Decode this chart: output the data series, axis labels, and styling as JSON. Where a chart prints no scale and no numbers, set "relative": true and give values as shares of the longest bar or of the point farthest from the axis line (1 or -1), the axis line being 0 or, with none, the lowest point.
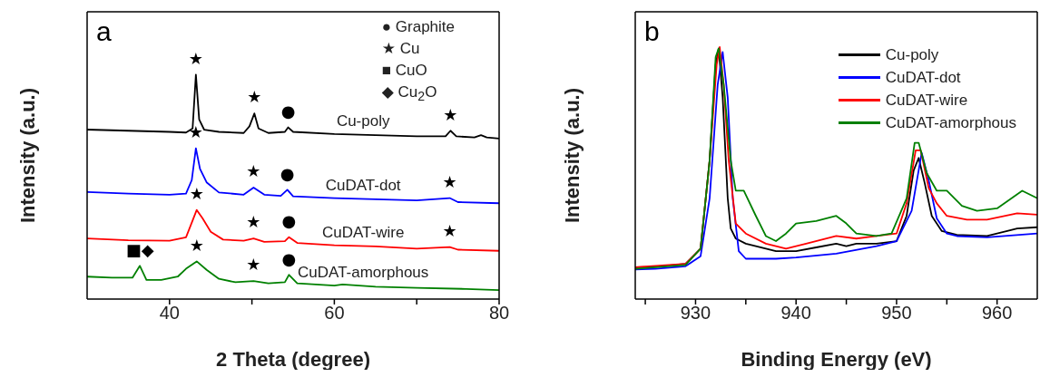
{
  "chart_data": [
    {
      "type": "line",
      "relative": true,
      "xlabel": "2 Theta (degree)",
      "ylabel": "Intensity (a.u.)",
      "xlim": [
        30,
        80
      ],
      "xticks": [
        40,
        {
          "value": 50,
          "label": null
        },
        60,
        {
          "value": 70,
          "label": null
        },
        80
      ],
      "legend": false,
      "series": [
        {
          "name": "Cu-poly",
          "color": "#000000",
          "x": [
            30,
            35,
            40,
            42,
            42.8,
            43.2,
            43.6,
            44.2,
            46,
            49,
            49.7,
            50.3,
            50.8,
            52,
            54,
            54.4,
            55,
            60,
            65,
            70,
            73.5,
            74.1,
            74.8,
            77,
            77.8,
            78.5,
            80
          ],
          "values": [
            0.755,
            0.75,
            0.745,
            0.742,
            0.76,
            1.0,
            0.8,
            0.755,
            0.745,
            0.74,
            0.77,
            0.827,
            0.76,
            0.74,
            0.745,
            0.765,
            0.745,
            0.735,
            0.73,
            0.725,
            0.725,
            0.75,
            0.725,
            0.72,
            0.73,
            0.72,
            0.715
          ]
        },
        {
          "name": "CuDAT-dot",
          "color": "#0000ff",
          "x": [
            30,
            35,
            40,
            42,
            42.7,
            43.2,
            43.7,
            44.5,
            46,
            49,
            50.2,
            51.5,
            53.5,
            54.3,
            55,
            60,
            65,
            70,
            74,
            75,
            80
          ],
          "values": [
            0.477,
            0.47,
            0.465,
            0.47,
            0.53,
            0.672,
            0.58,
            0.52,
            0.475,
            0.465,
            0.497,
            0.465,
            0.46,
            0.487,
            0.458,
            0.45,
            0.445,
            0.44,
            0.45,
            0.432,
            0.427
          ]
        },
        {
          "name": "CuDAT-wire",
          "color": "#ff0000",
          "x": [
            30,
            35,
            40,
            42,
            42.8,
            43.3,
            44,
            45,
            46.5,
            49,
            50.2,
            51.5,
            54,
            54.5,
            55.5,
            60,
            65,
            70,
            74,
            75,
            80
          ],
          "values": [
            0.27,
            0.262,
            0.26,
            0.275,
            0.35,
            0.397,
            0.36,
            0.3,
            0.265,
            0.26,
            0.27,
            0.255,
            0.258,
            0.276,
            0.25,
            0.24,
            0.235,
            0.225,
            0.232,
            0.22,
            0.215
          ]
        },
        {
          "name": "CuDAT-amorphous",
          "color": "#008000",
          "x": [
            30,
            33,
            35.5,
            36.4,
            37.2,
            39,
            41,
            42,
            43.3,
            44.5,
            46,
            48,
            50.2,
            52,
            54,
            54.5,
            55.5,
            60,
            61,
            65,
            70,
            76,
            80
          ],
          "values": [
            0.1,
            0.095,
            0.095,
            0.148,
            0.085,
            0.085,
            0.1,
            0.135,
            0.168,
            0.13,
            0.09,
            0.075,
            0.08,
            0.07,
            0.075,
            0.108,
            0.07,
            0.06,
            0.065,
            0.055,
            0.05,
            0.045,
            0.04
          ]
        }
      ],
      "annotations": [
        "a",
        "● Graphite",
        "★ Cu",
        "■ CuO",
        "◆ Cu$_{2}$O",
        {
          "text": "★",
          "x": 43.2,
          "y": 1.0
        },
        {
          "text": "★",
          "x": 50.3,
          "y": 0.827
        },
        {
          "text": "●",
          "x": 54.4,
          "y": 0.765
        },
        {
          "text": "★",
          "x": 74.1,
          "y": 0.75
        },
        {
          "text": "★",
          "x": 43.2,
          "y": 0.672
        },
        {
          "text": "★",
          "x": 50.2,
          "y": 0.497
        },
        {
          "text": "●",
          "x": 54.3,
          "y": 0.487
        },
        {
          "text": "★",
          "x": 74,
          "y": 0.45
        },
        {
          "text": "★",
          "x": 43.3,
          "y": 0.397
        },
        {
          "text": "★",
          "x": 50.2,
          "y": 0.27
        },
        {
          "text": "●",
          "x": 54.5,
          "y": 0.276
        },
        {
          "text": "★",
          "x": 74,
          "y": 0.232
        },
        {
          "text": "■◆",
          "x": 36.4,
          "y": 0.148
        },
        {
          "text": "★",
          "x": 43.3,
          "y": 0.168
        },
        {
          "text": "★",
          "x": 50.2,
          "y": 0.08
        },
        {
          "text": "●",
          "x": 54.5,
          "y": 0.108
        }
      ]
    },
    {
      "type": "line",
      "relative": true,
      "xlabel": "Binding Energy (eV)",
      "ylabel": "Intensity (a.u.)",
      "xlim": [
        924,
        964
      ],
      "xticks": [
        {
          "value": 925,
          "label": null
        },
        930,
        {
          "value": 935,
          "label": null
        },
        940,
        {
          "value": 945,
          "label": null
        },
        950,
        {
          "value": 955,
          "label": null
        },
        960
      ],
      "legend": "top right",
      "series": [
        {
          "name": "Cu-poly",
          "color": "#000000",
          "x": [
            924,
            926,
            929,
            930.5,
            931.4,
            932,
            932.3,
            932.7,
            933.2,
            933.5,
            934,
            935,
            938,
            940,
            942,
            944,
            945,
            946,
            947,
            948,
            950,
            951,
            951.7,
            952.2,
            952.8,
            953.5,
            954.5,
            956,
            959,
            962,
            964
          ],
          "values": [
            0.126,
            0.128,
            0.14,
            0.2,
            0.55,
            0.93,
            0.994,
            0.8,
            0.4,
            0.28,
            0.24,
            0.22,
            0.19,
            0.19,
            0.205,
            0.22,
            0.21,
            0.22,
            0.22,
            0.22,
            0.23,
            0.33,
            0.51,
            0.56,
            0.46,
            0.33,
            0.27,
            0.255,
            0.25,
            0.28,
            0.285
          ]
        },
        {
          "name": "CuDAT-dot",
          "color": "#0000ff",
          "x": [
            924,
            926,
            929,
            930.5,
            931.4,
            932.2,
            932.7,
            933.2,
            933.7,
            934.3,
            935,
            938,
            940,
            944,
            948,
            950,
            951.5,
            952.5,
            953.2,
            954,
            955,
            956,
            959,
            964
          ],
          "values": [
            0.117,
            0.12,
            0.13,
            0.17,
            0.4,
            0.85,
            0.98,
            0.8,
            0.4,
            0.19,
            0.16,
            0.16,
            0.165,
            0.18,
            0.21,
            0.23,
            0.35,
            0.58,
            0.47,
            0.32,
            0.26,
            0.25,
            0.245,
            0.26
          ]
        },
        {
          "name": "CuDAT-wire",
          "color": "#ff0000",
          "x": [
            924,
            929,
            930.5,
            931.4,
            932.1,
            932.4,
            932.8,
            933.3,
            934,
            935,
            937,
            939,
            941,
            944,
            946,
            948,
            950,
            951,
            951.9,
            952.4,
            953.2,
            954,
            955,
            957,
            959,
            962,
            964
          ],
          "values": [
            0.126,
            0.14,
            0.2,
            0.55,
            0.93,
            1.0,
            0.85,
            0.55,
            0.3,
            0.26,
            0.22,
            0.2,
            0.22,
            0.25,
            0.24,
            0.25,
            0.26,
            0.38,
            0.59,
            0.59,
            0.44,
            0.38,
            0.33,
            0.315,
            0.315,
            0.34,
            0.335
          ]
        },
        {
          "name": "CuDAT-amorphous",
          "color": "#008000",
          "x": [
            924,
            929,
            930.5,
            931.4,
            932,
            932.3,
            932.8,
            933.5,
            934,
            934.8,
            936,
            937,
            938,
            939,
            940,
            942,
            944,
            945,
            946,
            948,
            949.5,
            951,
            951.8,
            952.2,
            953,
            954,
            955,
            956.5,
            958,
            960,
            962.5,
            964
          ],
          "values": [
            0.12,
            0.135,
            0.2,
            0.55,
            0.96,
            0.995,
            0.85,
            0.55,
            0.43,
            0.43,
            0.33,
            0.25,
            0.23,
            0.26,
            0.3,
            0.31,
            0.33,
            0.3,
            0.26,
            0.25,
            0.26,
            0.4,
            0.62,
            0.62,
            0.5,
            0.43,
            0.43,
            0.37,
            0.35,
            0.36,
            0.43,
            0.4
          ]
        }
      ],
      "annotations": [
        "b"
      ]
    }
  ]
}
